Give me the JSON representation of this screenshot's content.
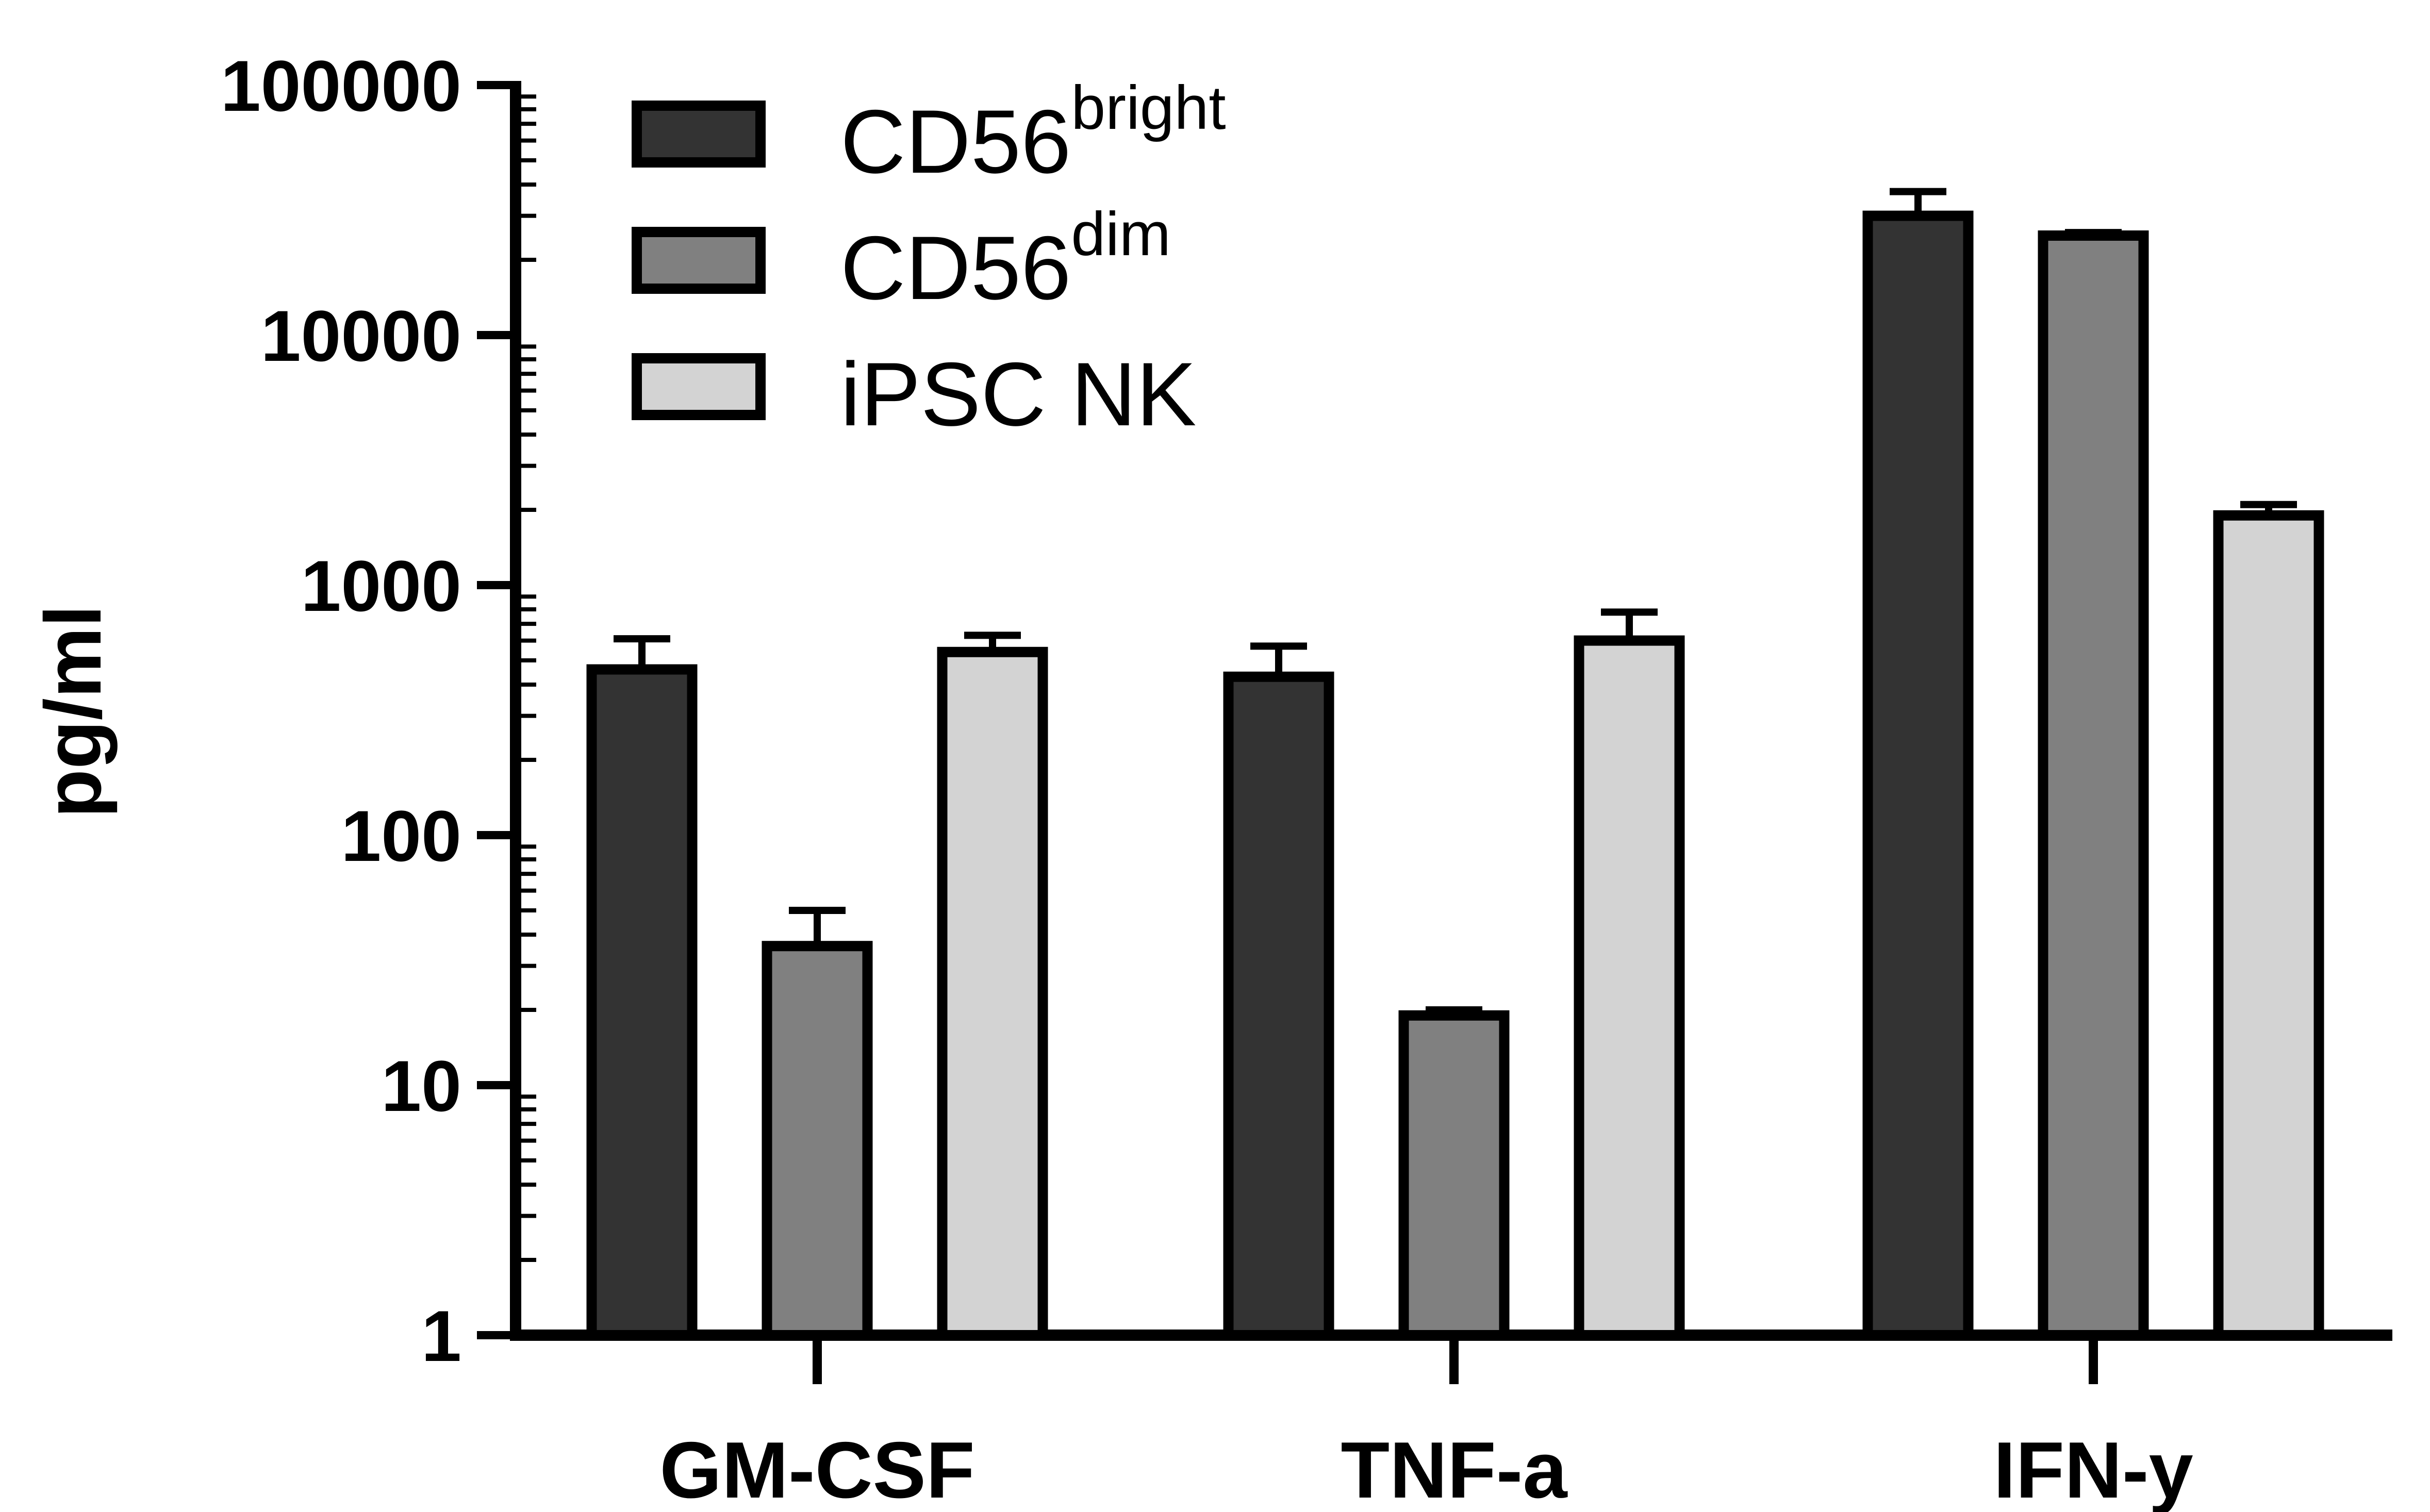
{
  "chart_data": {
    "type": "bar",
    "ylabel": "pg/ml",
    "yscale": "log",
    "ylim": [
      1,
      100000
    ],
    "yticks": [
      "1",
      "10",
      "100",
      "1000",
      "10000",
      "100000"
    ],
    "categories": [
      "GM-CSF",
      "TNF-a",
      "IFN-y"
    ],
    "legend_position": "top-left",
    "series": [
      {
        "name": "CD56",
        "name_superscript": "bright",
        "color": "#333333",
        "values": [
          460,
          430,
          30000
        ],
        "errors": [
          150,
          140,
          7500
        ]
      },
      {
        "name": "CD56",
        "name_superscript": "dim",
        "color": "#808080",
        "values": [
          36,
          19,
          25000
        ],
        "errors": [
          14,
          1,
          700
        ]
      },
      {
        "name": "iPSC NK",
        "color": "#d3d3d3",
        "values": [
          540,
          600,
          1900
        ],
        "errors": [
          90,
          180,
          200
        ]
      }
    ]
  }
}
